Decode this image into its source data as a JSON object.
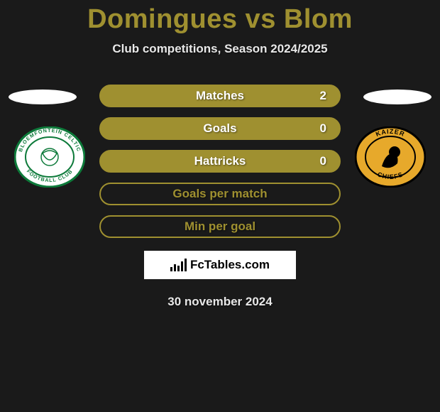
{
  "page": {
    "title": "Domingues vs Blom",
    "subtitle": "Club competitions, Season 2024/2025",
    "date": "30 november 2024",
    "background_color": "#1a1a1a",
    "title_color": "#9f9030",
    "title_fontsize": 38,
    "subtitle_fontsize": 17
  },
  "brand": {
    "text": "FcTables.com",
    "plate_bg": "#ffffff",
    "plate_text": "#000000"
  },
  "clubs": {
    "left": {
      "name": "Bloemfontein Celtic",
      "crest_bg": "#ffffff",
      "crest_ring": "#0d7a3a",
      "crest_text": "BLOEMFONTEIN CELTIC"
    },
    "right": {
      "name": "Kaizer Chiefs",
      "crest_bg": "#e7a92b",
      "crest_ring": "#000000",
      "crest_text": "KAIZER CHIEFS"
    }
  },
  "stats": {
    "type": "stat-pills",
    "pill_border_radius": 16,
    "rows": [
      {
        "label": "Matches",
        "value": "2",
        "fill": "#9f9030",
        "border": "#9f9030"
      },
      {
        "label": "Goals",
        "value": "0",
        "fill": "#9f9030",
        "border": "#9f9030"
      },
      {
        "label": "Hattricks",
        "value": "0",
        "fill": "#9f9030",
        "border": "#9f9030"
      },
      {
        "label": "Goals per match",
        "value": "",
        "fill": "transparent",
        "border": "#9f9030"
      },
      {
        "label": "Min per goal",
        "value": "",
        "fill": "transparent",
        "border": "#9f9030"
      }
    ]
  }
}
